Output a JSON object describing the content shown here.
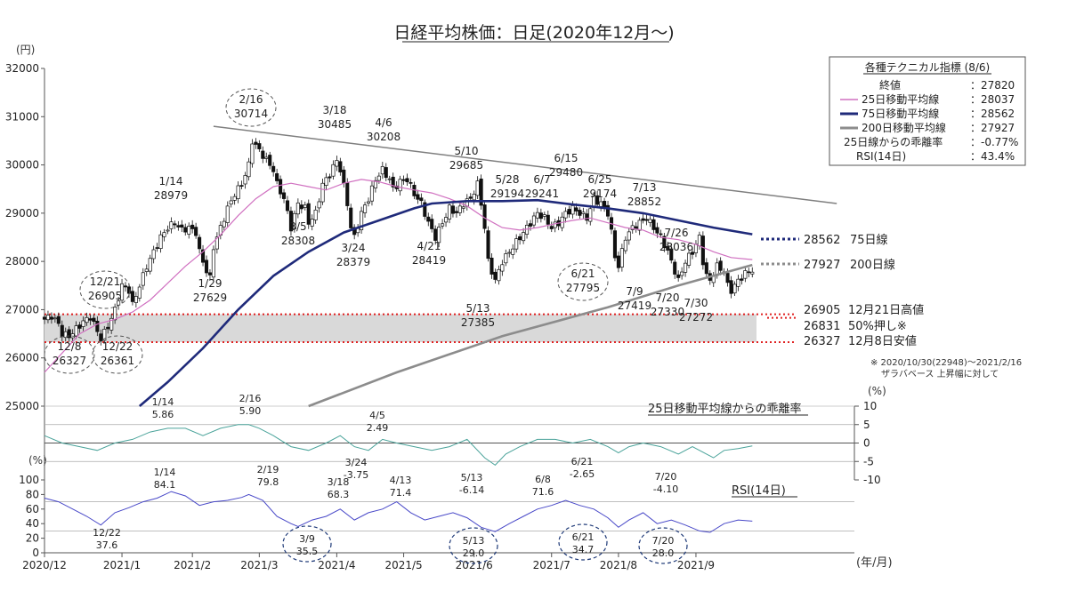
{
  "chart_data": {
    "type": "candlestick",
    "title": "日経平均株価：日足(2020年12月～)",
    "unit_price": "(円)",
    "unit_pct": "(%)",
    "unit_xaxis": "(年/月)",
    "price_ylim": [
      25000,
      32000
    ],
    "price_yticks": [
      "32000",
      "31000",
      "30000",
      "29000",
      "28000",
      "27000",
      "26000",
      "25000"
    ],
    "dev_ylim": [
      -10,
      10
    ],
    "dev_yticks": [
      "10",
      "5",
      "0",
      "-5",
      "-10"
    ],
    "rsi_ylim": [
      0,
      100
    ],
    "rsi_yticks": [
      "100",
      "80",
      "60",
      "40",
      "20",
      "0"
    ],
    "x_ticks": [
      "2020/12",
      "2021/1",
      "2021/2",
      "2021/3",
      "2021/4",
      "2021/5",
      "2021/6",
      "2021/7",
      "2021/8",
      "2021/9"
    ],
    "indicators": {
      "title": "各種テクニカル指標 (8/6)",
      "rows": [
        {
          "label": "終値",
          "value": "：27820"
        },
        {
          "label": "25日移動平均線",
          "value": "：28037"
        },
        {
          "label": "75日移動平均線",
          "value": "：28562"
        },
        {
          "label": "200日移動平均線",
          "value": "：27927"
        },
        {
          "label": "25日線からの乖離率",
          "value": "：-0.77%"
        },
        {
          "label": "RSI(14日)",
          "value": "：43.4%"
        }
      ]
    },
    "ma_legend": [
      {
        "value": "28562",
        "label": "75日線"
      },
      {
        "value": "27927",
        "label": "200日線"
      }
    ],
    "levels": [
      {
        "value": "26905",
        "label": "12月21日高値"
      },
      {
        "value": "26831",
        "label": "50%押し※"
      },
      {
        "value": "26327",
        "label": "12月8日安値"
      }
    ],
    "note_line1": "※ 2020/10/30(22948)～2021/2/16",
    "note_line2": "ザラバベース 上昇幅に対して",
    "dev_title": "25日移動平均線からの乖離率",
    "rsi_title": "RSI(14日)",
    "price_annotations": [
      {
        "date": "12/21",
        "value": "26905"
      },
      {
        "date": "12/8",
        "value": "26327"
      },
      {
        "date": "12/22",
        "value": "26361"
      },
      {
        "date": "1/14",
        "value": "28979"
      },
      {
        "date": "1/29",
        "value": "27629"
      },
      {
        "date": "2/16",
        "value": "30714"
      },
      {
        "date": "3/5",
        "value": "28308"
      },
      {
        "date": "3/18",
        "value": "30485"
      },
      {
        "date": "3/24",
        "value": "28379"
      },
      {
        "date": "4/6",
        "value": "30208"
      },
      {
        "date": "4/21",
        "value": "28419"
      },
      {
        "date": "5/10",
        "value": "29685"
      },
      {
        "date": "5/13",
        "value": "27385"
      },
      {
        "date": "5/28",
        "value": "29194"
      },
      {
        "date": "6/7",
        "value": "29241"
      },
      {
        "date": "6/15",
        "value": "29480"
      },
      {
        "date": "6/25",
        "value": "29174"
      },
      {
        "date": "6/21",
        "value": "27795"
      },
      {
        "date": "7/9",
        "value": "27419"
      },
      {
        "date": "7/13",
        "value": "28852"
      },
      {
        "date": "7/20",
        "value": "27330"
      },
      {
        "date": "7/26",
        "value": "28036"
      },
      {
        "date": "7/30",
        "value": "27272"
      }
    ],
    "dev_annotations": [
      {
        "date": "1/14",
        "value": "5.86"
      },
      {
        "date": "2/16",
        "value": "5.90"
      },
      {
        "date": "4/5",
        "value": "2.49"
      },
      {
        "date": "3/24",
        "value": "-3.75"
      },
      {
        "date": "5/13",
        "value": "-6.14"
      },
      {
        "date": "6/21",
        "value": "-2.65"
      },
      {
        "date": "7/20",
        "value": "-4.10"
      }
    ],
    "rsi_annotations": [
      {
        "date": "1/14",
        "value": "84.1"
      },
      {
        "date": "2/19",
        "value": "79.8"
      },
      {
        "date": "3/18",
        "value": "68.3"
      },
      {
        "date": "4/13",
        "value": "71.4"
      },
      {
        "date": "6/8",
        "value": "71.6"
      },
      {
        "date": "12/22",
        "value": "37.6"
      },
      {
        "date": "3/9",
        "value": "35.5"
      },
      {
        "date": "5/13",
        "value": "29.0"
      },
      {
        "date": "6/21",
        "value": "34.7"
      },
      {
        "date": "7/20",
        "value": "28.0"
      }
    ],
    "colors": {
      "ma25": "#d070c0",
      "ma75": "#1f2a7a",
      "ma200": "#8c8c8c",
      "trend": "#7f7f7f",
      "dev_line": "#4aa39a",
      "rsi_line": "#4848c8",
      "level_line": "#e02020",
      "band": "#d9d9d9"
    },
    "price_path": [
      [
        0,
        26800
      ],
      [
        2,
        26870
      ],
      [
        4,
        26700
      ],
      [
        5,
        26500
      ],
      [
        7,
        26450
      ],
      [
        9,
        26600
      ],
      [
        11,
        26750
      ],
      [
        13,
        26850
      ],
      [
        15,
        26550
      ],
      [
        16,
        26400
      ],
      [
        18,
        26650
      ],
      [
        20,
        27000
      ],
      [
        22,
        27500
      ],
      [
        24,
        27400
      ],
      [
        25,
        27100
      ],
      [
        27,
        27500
      ],
      [
        29,
        27900
      ],
      [
        31,
        28200
      ],
      [
        33,
        28500
      ],
      [
        35,
        28700
      ],
      [
        37,
        28800
      ],
      [
        39,
        28650
      ],
      [
        41,
        28700
      ],
      [
        43,
        28600
      ],
      [
        44,
        28200
      ],
      [
        46,
        27800
      ],
      [
        47,
        27650
      ],
      [
        48,
        28300
      ],
      [
        50,
        28700
      ],
      [
        52,
        29100
      ],
      [
        54,
        29400
      ],
      [
        56,
        29600
      ],
      [
        58,
        30000
      ],
      [
        59,
        30500
      ],
      [
        61,
        30300
      ],
      [
        63,
        30100
      ],
      [
        65,
        29900
      ],
      [
        66,
        29600
      ],
      [
        68,
        29300
      ],
      [
        69,
        29000
      ],
      [
        70,
        28700
      ],
      [
        72,
        29200
      ],
      [
        74,
        29100
      ],
      [
        75,
        28800
      ],
      [
        77,
        29000
      ],
      [
        79,
        29600
      ],
      [
        81,
        29800
      ],
      [
        83,
        30100
      ],
      [
        84,
        29900
      ],
      [
        86,
        29200
      ],
      [
        87,
        28700
      ],
      [
        88,
        28500
      ],
      [
        90,
        29000
      ],
      [
        92,
        29300
      ],
      [
        94,
        29700
      ],
      [
        96,
        29900
      ],
      [
        98,
        29700
      ],
      [
        99,
        29500
      ],
      [
        101,
        29650
      ],
      [
        103,
        29700
      ],
      [
        105,
        29400
      ],
      [
        107,
        29200
      ],
      [
        109,
        28800
      ],
      [
        111,
        28500
      ],
      [
        113,
        28800
      ],
      [
        115,
        29100
      ],
      [
        117,
        29000
      ],
      [
        119,
        29200
      ],
      [
        121,
        29300
      ],
      [
        123,
        29600
      ],
      [
        124,
        29200
      ],
      [
        125,
        28700
      ],
      [
        126,
        28000
      ],
      [
        127,
        27800
      ],
      [
        128,
        27600
      ],
      [
        130,
        28000
      ],
      [
        132,
        28200
      ],
      [
        134,
        28400
      ],
      [
        136,
        28600
      ],
      [
        138,
        28800
      ],
      [
        140,
        29000
      ],
      [
        142,
        28900
      ],
      [
        144,
        28700
      ],
      [
        146,
        28800
      ],
      [
        148,
        29000
      ],
      [
        150,
        29100
      ],
      [
        152,
        29000
      ],
      [
        154,
        28900
      ],
      [
        156,
        29300
      ],
      [
        158,
        29200
      ],
      [
        160,
        29000
      ],
      [
        161,
        28600
      ],
      [
        162,
        28100
      ],
      [
        163,
        27900
      ],
      [
        165,
        28500
      ],
      [
        167,
        28700
      ],
      [
        169,
        28800
      ],
      [
        171,
        28900
      ],
      [
        173,
        28700
      ],
      [
        175,
        28500
      ],
      [
        177,
        28200
      ],
      [
        179,
        27800
      ],
      [
        180,
        27600
      ],
      [
        182,
        28000
      ],
      [
        184,
        28200
      ],
      [
        186,
        28500
      ],
      [
        187,
        28000
      ],
      [
        188,
        27700
      ],
      [
        189,
        27600
      ],
      [
        191,
        27900
      ],
      [
        193,
        27800
      ],
      [
        194,
        27500
      ],
      [
        195,
        27400
      ],
      [
        197,
        27600
      ],
      [
        199,
        27750
      ],
      [
        201,
        27820
      ]
    ],
    "ma25_path": [
      [
        0,
        25700
      ],
      [
        5,
        26100
      ],
      [
        10,
        26500
      ],
      [
        15,
        26700
      ],
      [
        20,
        26800
      ],
      [
        25,
        26950
      ],
      [
        30,
        27200
      ],
      [
        35,
        27550
      ],
      [
        40,
        27900
      ],
      [
        45,
        28200
      ],
      [
        50,
        28550
      ],
      [
        55,
        28950
      ],
      [
        60,
        29300
      ],
      [
        65,
        29550
      ],
      [
        70,
        29620
      ],
      [
        75,
        29550
      ],
      [
        80,
        29480
      ],
      [
        85,
        29620
      ],
      [
        90,
        29700
      ],
      [
        95,
        29650
      ],
      [
        100,
        29550
      ],
      [
        105,
        29480
      ],
      [
        110,
        29420
      ],
      [
        115,
        29300
      ],
      [
        120,
        29150
      ],
      [
        125,
        28900
      ],
      [
        130,
        28700
      ],
      [
        135,
        28650
      ],
      [
        140,
        28700
      ],
      [
        145,
        28780
      ],
      [
        150,
        28850
      ],
      [
        155,
        28900
      ],
      [
        160,
        28800
      ],
      [
        165,
        28700
      ],
      [
        170,
        28650
      ],
      [
        175,
        28500
      ],
      [
        180,
        28450
      ],
      [
        185,
        28350
      ],
      [
        190,
        28200
      ],
      [
        195,
        28080
      ],
      [
        201,
        28037
      ]
    ],
    "ma75_path": [
      [
        27,
        25000
      ],
      [
        35,
        25500
      ],
      [
        45,
        26200
      ],
      [
        55,
        27000
      ],
      [
        65,
        27700
      ],
      [
        75,
        28200
      ],
      [
        85,
        28600
      ],
      [
        95,
        28850
      ],
      [
        105,
        29100
      ],
      [
        110,
        29200
      ],
      [
        120,
        29250
      ],
      [
        130,
        29250
      ],
      [
        140,
        29270
      ],
      [
        150,
        29180
      ],
      [
        160,
        29100
      ],
      [
        170,
        29000
      ],
      [
        180,
        28850
      ],
      [
        190,
        28700
      ],
      [
        201,
        28562
      ]
    ],
    "ma200_path": [
      [
        75,
        25000
      ],
      [
        100,
        25700
      ],
      [
        130,
        26450
      ],
      [
        160,
        27050
      ],
      [
        180,
        27500
      ],
      [
        201,
        27927
      ]
    ],
    "trend_path": [
      [
        48,
        30800
      ],
      [
        225,
        29200
      ]
    ],
    "dev_path": [
      [
        0,
        2
      ],
      [
        5,
        0
      ],
      [
        10,
        -1
      ],
      [
        15,
        -2
      ],
      [
        20,
        0
      ],
      [
        25,
        1
      ],
      [
        30,
        3
      ],
      [
        35,
        4
      ],
      [
        40,
        4
      ],
      [
        45,
        2
      ],
      [
        50,
        4
      ],
      [
        55,
        5
      ],
      [
        58,
        5
      ],
      [
        61,
        4
      ],
      [
        65,
        2
      ],
      [
        70,
        -1
      ],
      [
        75,
        -2
      ],
      [
        80,
        0
      ],
      [
        84,
        2
      ],
      [
        88,
        -1
      ],
      [
        92,
        -2
      ],
      [
        96,
        1
      ],
      [
        100,
        0
      ],
      [
        105,
        -1
      ],
      [
        110,
        -2
      ],
      [
        115,
        -1
      ],
      [
        120,
        1
      ],
      [
        125,
        -4
      ],
      [
        128,
        -6
      ],
      [
        131,
        -3
      ],
      [
        135,
        -1
      ],
      [
        140,
        1
      ],
      [
        145,
        1
      ],
      [
        150,
        0
      ],
      [
        155,
        1
      ],
      [
        160,
        -1
      ],
      [
        163,
        -2.65
      ],
      [
        166,
        -1
      ],
      [
        170,
        0
      ],
      [
        175,
        -1
      ],
      [
        180,
        -3
      ],
      [
        184,
        -1
      ],
      [
        188,
        -3
      ],
      [
        190,
        -4
      ],
      [
        193,
        -2
      ],
      [
        197,
        -1.5
      ],
      [
        201,
        -0.77
      ]
    ],
    "rsi_path": [
      [
        0,
        75
      ],
      [
        4,
        70
      ],
      [
        8,
        60
      ],
      [
        12,
        50
      ],
      [
        16,
        38
      ],
      [
        20,
        55
      ],
      [
        24,
        62
      ],
      [
        28,
        70
      ],
      [
        32,
        75
      ],
      [
        36,
        84
      ],
      [
        40,
        78
      ],
      [
        44,
        65
      ],
      [
        48,
        70
      ],
      [
        52,
        72
      ],
      [
        56,
        76
      ],
      [
        58,
        80
      ],
      [
        62,
        72
      ],
      [
        66,
        50
      ],
      [
        70,
        40
      ],
      [
        72,
        36
      ],
      [
        76,
        45
      ],
      [
        80,
        50
      ],
      [
        84,
        60
      ],
      [
        88,
        45
      ],
      [
        92,
        55
      ],
      [
        96,
        60
      ],
      [
        100,
        70
      ],
      [
        104,
        55
      ],
      [
        108,
        45
      ],
      [
        112,
        50
      ],
      [
        116,
        55
      ],
      [
        120,
        48
      ],
      [
        124,
        35
      ],
      [
        128,
        29
      ],
      [
        132,
        40
      ],
      [
        136,
        50
      ],
      [
        140,
        60
      ],
      [
        144,
        65
      ],
      [
        148,
        72
      ],
      [
        152,
        65
      ],
      [
        156,
        60
      ],
      [
        160,
        48
      ],
      [
        163,
        35
      ],
      [
        166,
        45
      ],
      [
        170,
        55
      ],
      [
        174,
        40
      ],
      [
        178,
        45
      ],
      [
        182,
        38
      ],
      [
        186,
        30
      ],
      [
        189,
        28
      ],
      [
        193,
        40
      ],
      [
        197,
        45
      ],
      [
        201,
        43.4
      ]
    ]
  }
}
